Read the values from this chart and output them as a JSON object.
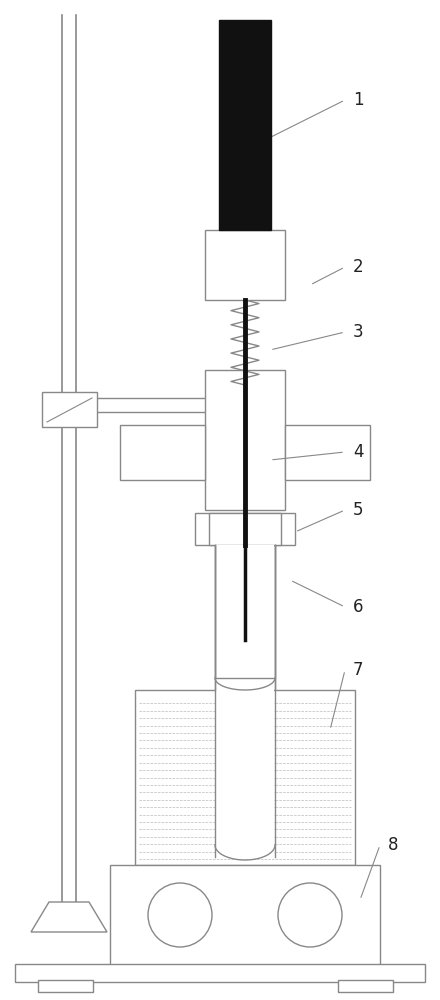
{
  "fig_width": 4.4,
  "fig_height": 10.0,
  "dpi": 100,
  "bg_color": "#ffffff",
  "line_color": "#888888",
  "dark_color": "#111111",
  "lw": 1.0
}
